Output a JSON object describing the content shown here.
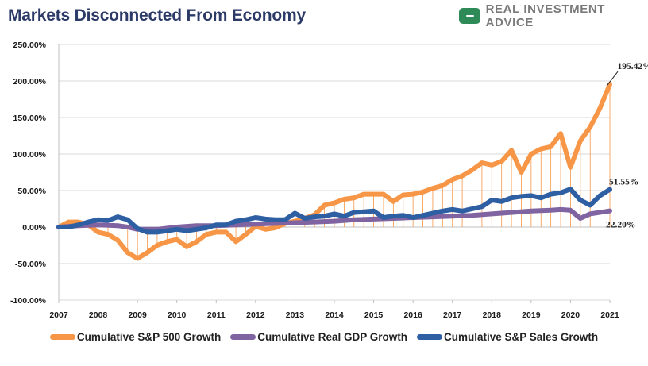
{
  "title": "Markets Disconnected From Economy",
  "brand": {
    "name": "REAL INVESTMENT ADVICE",
    "icon": "chat-bubble-icon"
  },
  "chart_data": {
    "type": "line",
    "title": "Markets Disconnected From Economy",
    "ylim": [
      -100,
      250
    ],
    "yticks": [
      "250.00%",
      "200.00%",
      "150.00%",
      "100.00%",
      "50.00%",
      "0.00%",
      "-50.00%",
      "-100.00%"
    ],
    "ytick_values": [
      250,
      200,
      150,
      100,
      50,
      0,
      -50,
      -100
    ],
    "xlim": [
      2007,
      2021
    ],
    "xticks": [
      "2007",
      "2008",
      "2009",
      "2010",
      "2011",
      "2012",
      "2013",
      "2014",
      "2015",
      "2016",
      "2017",
      "2018",
      "2019",
      "2020",
      "2021"
    ],
    "grid": "horizontal",
    "legend_position": "bottom",
    "series": [
      {
        "name": "Cumulative S&P 500 Growth",
        "color": "#f79646",
        "x": [
          2007.0,
          2007.25,
          2007.5,
          2007.75,
          2008.0,
          2008.25,
          2008.5,
          2008.75,
          2009.0,
          2009.25,
          2009.5,
          2009.75,
          2010.0,
          2010.25,
          2010.5,
          2010.75,
          2011.0,
          2011.25,
          2011.5,
          2011.75,
          2012.0,
          2012.25,
          2012.5,
          2012.75,
          2013.0,
          2013.25,
          2013.5,
          2013.75,
          2014.0,
          2014.25,
          2014.5,
          2014.75,
          2015.0,
          2015.25,
          2015.5,
          2015.75,
          2016.0,
          2016.25,
          2016.5,
          2016.75,
          2017.0,
          2017.25,
          2017.5,
          2017.75,
          2018.0,
          2018.25,
          2018.5,
          2018.75,
          2019.0,
          2019.25,
          2019.5,
          2019.75,
          2020.0,
          2020.25,
          2020.5,
          2020.75,
          2021.0
        ],
        "values": [
          0,
          7,
          7,
          3,
          -7,
          -10,
          -18,
          -35,
          -43,
          -35,
          -25,
          -20,
          -17,
          -27,
          -20,
          -10,
          -7,
          -7,
          -20,
          -10,
          1,
          -3,
          -1,
          5,
          8,
          12,
          17,
          30,
          33,
          38,
          40,
          45,
          45,
          45,
          35,
          44,
          45,
          48,
          53,
          57,
          65,
          70,
          78,
          88,
          85,
          90,
          105,
          75,
          100,
          107,
          110,
          128,
          82,
          118,
          137,
          163,
          195.42
        ]
      },
      {
        "name": "Cumulative Real GDP Growth",
        "color": "#8064a2",
        "x": [
          2007.0,
          2007.5,
          2008.0,
          2008.5,
          2008.75,
          2009.0,
          2009.5,
          2010.0,
          2010.5,
          2011.0,
          2011.5,
          2012.0,
          2012.5,
          2013.0,
          2013.5,
          2014.0,
          2014.5,
          2015.0,
          2015.5,
          2016.0,
          2016.5,
          2017.0,
          2017.5,
          2018.0,
          2018.5,
          2019.0,
          2019.5,
          2019.75,
          2020.0,
          2020.25,
          2020.5,
          2021.0
        ],
        "values": [
          0,
          2,
          3,
          2,
          0,
          -3,
          -3,
          0,
          2,
          2,
          3,
          4,
          5,
          6,
          7,
          8,
          10,
          11,
          12,
          13,
          14,
          15,
          16,
          18,
          20,
          22,
          23,
          24,
          23,
          12,
          18,
          22.2
        ]
      },
      {
        "name": "Cumulative S&P Sales Growth",
        "color": "#2e5fa3",
        "x": [
          2007.0,
          2007.25,
          2007.5,
          2007.75,
          2008.0,
          2008.25,
          2008.5,
          2008.75,
          2009.0,
          2009.25,
          2009.5,
          2009.75,
          2010.0,
          2010.25,
          2010.5,
          2010.75,
          2011.0,
          2011.25,
          2011.5,
          2011.75,
          2012.0,
          2012.25,
          2012.5,
          2012.75,
          2013.0,
          2013.25,
          2013.5,
          2013.75,
          2014.0,
          2014.25,
          2014.5,
          2014.75,
          2015.0,
          2015.25,
          2015.5,
          2015.75,
          2016.0,
          2016.25,
          2016.5,
          2016.75,
          2017.0,
          2017.25,
          2017.5,
          2017.75,
          2018.0,
          2018.25,
          2018.5,
          2018.75,
          2019.0,
          2019.25,
          2019.5,
          2019.75,
          2020.0,
          2020.25,
          2020.5,
          2020.75,
          2021.0
        ],
        "values": [
          0,
          0,
          3,
          7,
          10,
          9,
          14,
          10,
          -2,
          -7,
          -7,
          -5,
          -3,
          -5,
          -3,
          -1,
          3,
          3,
          8,
          10,
          13,
          11,
          10,
          10,
          19,
          12,
          14,
          15,
          18,
          15,
          20,
          21,
          22,
          13,
          15,
          16,
          13,
          16,
          19,
          22,
          24,
          22,
          25,
          28,
          37,
          35,
          40,
          42,
          43,
          40,
          45,
          47,
          52,
          37,
          30,
          43,
          51.55
        ]
      }
    ],
    "annotations": [
      "195.42%",
      "51.55%",
      "22.20%"
    ]
  }
}
